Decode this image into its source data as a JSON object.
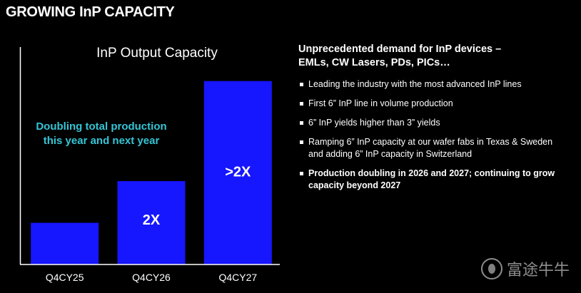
{
  "page": {
    "title": "GROWING InP CAPACITY",
    "watermark_text": "富途牛牛"
  },
  "chart_data": {
    "type": "bar",
    "title": "InP Output Capacity",
    "categories": [
      "Q4CY25",
      "Q4CY26",
      "Q4CY27"
    ],
    "values": [
      1,
      2,
      4.4
    ],
    "bar_labels": [
      "",
      "2X",
      ">2X"
    ],
    "ylim": [
      0,
      4.6
    ],
    "xlabel": "",
    "ylabel": "",
    "grid": false,
    "annotation_lines": [
      "Doubling total production",
      "this year and next year"
    ],
    "colors": {
      "bar": "#1616ff",
      "annotation": "#35c5d6",
      "axis": "#ffffff"
    }
  },
  "panel": {
    "heading_lines": [
      "Unprecedented demand for InP devices –",
      "EMLs, CW Lasers, PDs, PICs…"
    ],
    "bullets": [
      {
        "text": "Leading the industry with the most advanced InP lines",
        "bold": false
      },
      {
        "text": "First 6” InP line in volume production",
        "bold": false
      },
      {
        "text": "6” InP yields higher than 3” yields",
        "bold": false
      },
      {
        "text": "Ramping 6”  InP capacity at our wafer fabs in Texas & Sweden and adding 6” InP capacity in Switzerland",
        "bold": false
      },
      {
        "text": "Production doubling in 2026 and 2027; continuing to grow capacity beyond 2027",
        "bold": true
      }
    ]
  }
}
